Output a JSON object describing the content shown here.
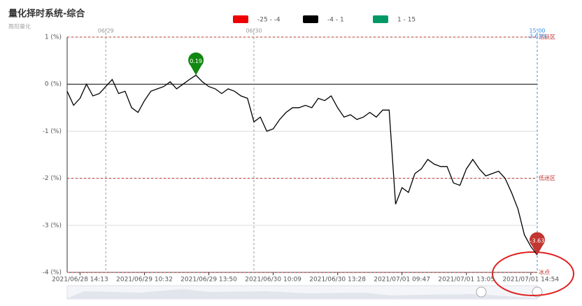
{
  "chart_data": {
    "type": "line",
    "title": "量化择时系统-综合",
    "subtitle": "舞阳量化",
    "categories": [
      null,
      null,
      "2021/06/28 14:13",
      null,
      null,
      null,
      null,
      null,
      null,
      null,
      null,
      null,
      "2021/06/29 10:32",
      null,
      null,
      null,
      null,
      null,
      null,
      null,
      null,
      null,
      "2021/06/29 13:50",
      null,
      null,
      null,
      null,
      null,
      null,
      null,
      null,
      null,
      "2021/06/30 10:09",
      null,
      null,
      null,
      null,
      null,
      null,
      null,
      null,
      null,
      "2021/06/30 13:28",
      null,
      null,
      null,
      null,
      null,
      null,
      null,
      null,
      null,
      "2021/07/01 09:47",
      null,
      null,
      null,
      null,
      null,
      null,
      null,
      null,
      null,
      "2021/07/01 13:05",
      null,
      null,
      null,
      null,
      null,
      null,
      null,
      null,
      null,
      "2021/07/01 14:54",
      null
    ],
    "series": [
      {
        "values": [
          -0.15,
          -0.45,
          -0.3,
          0.0,
          -0.25,
          -0.2,
          -0.05,
          0.1,
          -0.2,
          -0.15,
          -0.5,
          -0.6,
          -0.35,
          -0.15,
          -0.1,
          -0.05,
          0.05,
          -0.1,
          0.0,
          0.1,
          0.19,
          0.05,
          -0.05,
          -0.1,
          -0.2,
          -0.1,
          -0.15,
          -0.25,
          -0.3,
          -0.8,
          -0.7,
          -1.0,
          -0.95,
          -0.75,
          -0.6,
          -0.5,
          -0.5,
          -0.45,
          -0.5,
          -0.3,
          -0.35,
          -0.25,
          -0.5,
          -0.7,
          -0.65,
          -0.75,
          -0.7,
          -0.6,
          -0.7,
          -0.55,
          -0.55,
          -2.55,
          -2.2,
          -2.3,
          -1.9,
          -1.8,
          -1.6,
          -1.7,
          -1.75,
          -1.75,
          -2.1,
          -2.15,
          -1.8,
          -1.6,
          -1.8,
          -1.95,
          -1.9,
          -1.85,
          -2.0,
          -2.3,
          -2.65,
          -3.2,
          -3.45,
          -3.63
        ]
      }
    ],
    "pieces": [
      {
        "label": "-25 - -4",
        "min": -25,
        "max": -4,
        "color": "#ee0000"
      },
      {
        "label": "-4 - 1",
        "min": -4,
        "max": 1,
        "color": "#000000"
      },
      {
        "label": "1 - 15",
        "min": 1,
        "max": 15,
        "color": "#009966"
      }
    ],
    "ylim": [
      -4,
      1
    ],
    "yticks": [
      {
        "value": 1,
        "label": "1 (%)"
      },
      {
        "value": 0,
        "label": "0 (%)"
      },
      {
        "value": -1,
        "label": "-1 (%)"
      },
      {
        "value": -2,
        "label": "-2 (%)"
      },
      {
        "value": -3,
        "label": "-3 (%)"
      },
      {
        "value": -4,
        "label": "-4 (%)"
      }
    ],
    "grid": true,
    "hlines": [
      {
        "value": 1,
        "label": "活跃区"
      },
      {
        "value": -2,
        "label": "低迷区"
      },
      {
        "value": -4,
        "label": "冰点"
      }
    ],
    "vlines": [
      {
        "index": 6,
        "label": "06/29"
      },
      {
        "index": 29,
        "label": "06/30"
      },
      {
        "index": 73,
        "label": "15:00"
      }
    ],
    "last_label": "-3.63%",
    "mark_points": [
      {
        "index": 20,
        "color": "#118811"
      },
      {
        "index": 73,
        "color": "#c23531"
      }
    ]
  }
}
